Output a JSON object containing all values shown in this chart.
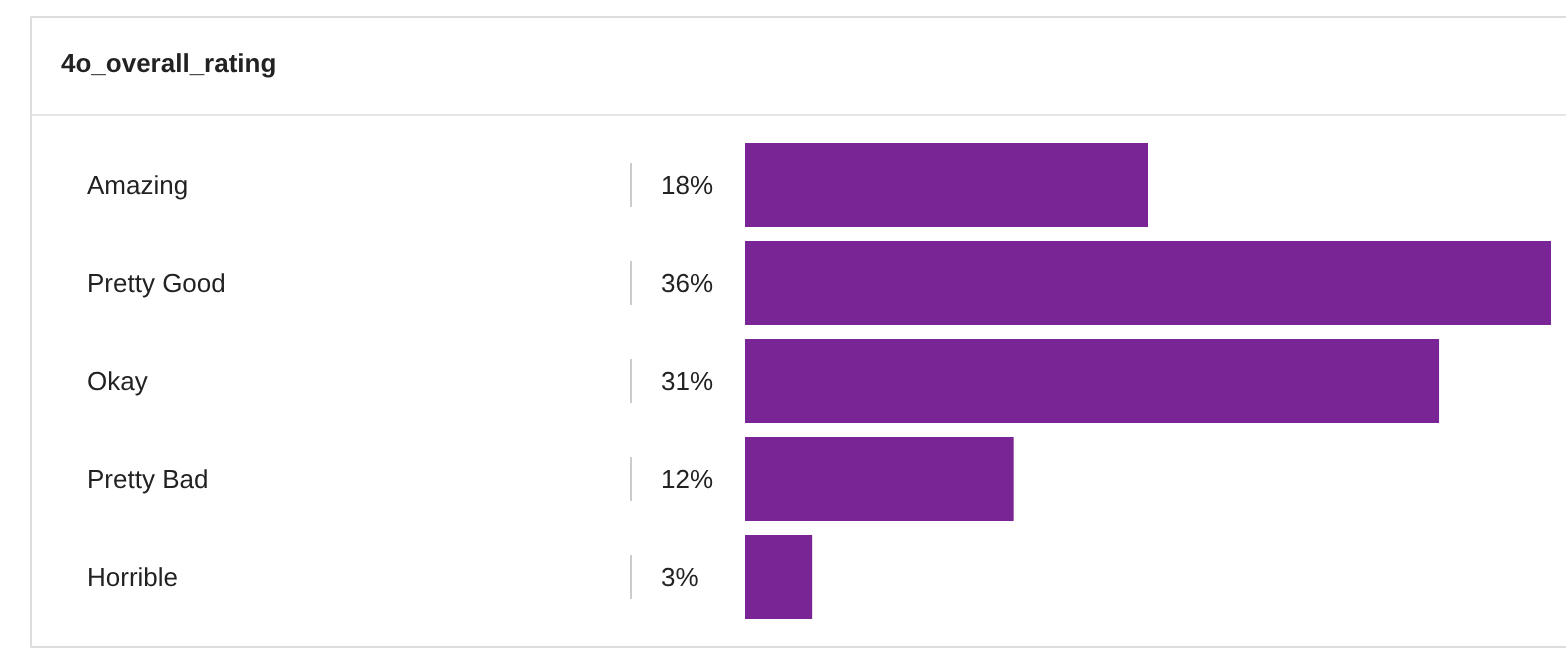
{
  "chart_data": {
    "type": "bar",
    "orientation": "horizontal",
    "title": "4o_overall_rating",
    "categories": [
      "Amazing",
      "Pretty Good",
      "Okay",
      "Pretty Bad",
      "Horrible"
    ],
    "values": [
      18,
      36,
      31,
      12,
      3
    ],
    "value_labels": [
      "18%",
      "36%",
      "31%",
      "12%",
      "3%"
    ],
    "color": "#7a2595",
    "grid": false
  }
}
